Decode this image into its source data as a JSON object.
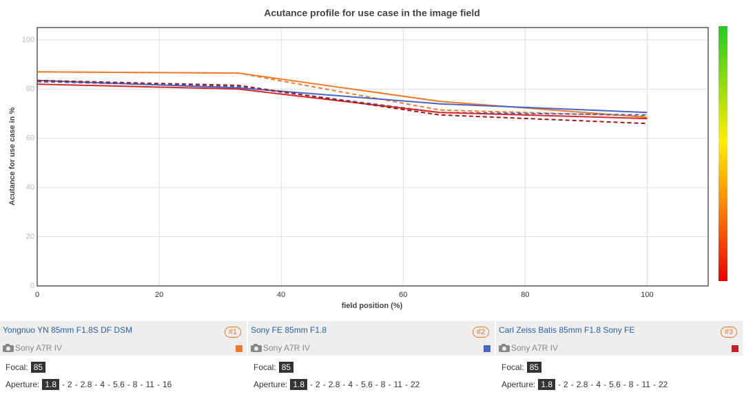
{
  "chart_data": {
    "type": "line",
    "title": "Acutance profile for use case in the image field",
    "xlabel": "field position (%)",
    "ylabel": "Acutance for use case in %",
    "x": [
      0,
      33,
      66,
      100
    ],
    "series": [
      {
        "color": "#f07a2a",
        "dashed": false,
        "values": [
          87,
          86.5,
          75,
          68.5
        ]
      },
      {
        "color": "#f07a2a",
        "dashed": true,
        "values": [
          87,
          86.5,
          71.5,
          69
        ]
      },
      {
        "color": "#4a63c4",
        "dashed": false,
        "values": [
          83.5,
          80.5,
          74,
          70.5
        ]
      },
      {
        "color": "#4a63c4",
        "dashed": true,
        "values": [
          83,
          81,
          70.5,
          69.5
        ]
      },
      {
        "color": "#d42a2a",
        "dashed": false,
        "values": [
          82,
          80,
          70.5,
          68
        ]
      },
      {
        "color": "#a01818",
        "dashed": true,
        "values": [
          83.5,
          81.5,
          69.5,
          66
        ]
      }
    ],
    "xlim": [
      0,
      110
    ],
    "ylim": [
      0,
      105
    ],
    "xticks": [
      0,
      20,
      40,
      60,
      80,
      100
    ],
    "yticks": [
      0,
      20,
      40,
      60,
      80,
      100
    ],
    "grid": true
  },
  "lenses": [
    {
      "name": "Yongnuo YN 85mm F1.8S DF DSM",
      "badge": "#1",
      "camera": "Sony A7R IV",
      "color": "#f07a2a",
      "focal_label": "Focal:",
      "focal": "85",
      "aperture_label": "Aperture:",
      "apertures": [
        "1.8",
        "2",
        "2.8",
        "4",
        "5.6",
        "8",
        "11",
        "16"
      ]
    },
    {
      "name": "Sony FE 85mm F1.8",
      "badge": "#2",
      "camera": "Sony A7R IV",
      "color": "#4a63c4",
      "focal_label": "Focal:",
      "focal": "85",
      "aperture_label": "Aperture:",
      "apertures": [
        "1.8",
        "2",
        "2.8",
        "4",
        "5.6",
        "8",
        "11",
        "22"
      ]
    },
    {
      "name": "Carl Zeiss Batis 85mm F1.8 Sony FE",
      "badge": "#3",
      "camera": "Sony A7R IV",
      "color": "#c42222",
      "focal_label": "Focal:",
      "focal": "85",
      "aperture_label": "Aperture:",
      "apertures": [
        "1.8",
        "2",
        "2.8",
        "4",
        "5.6",
        "8",
        "11",
        "22"
      ]
    }
  ]
}
